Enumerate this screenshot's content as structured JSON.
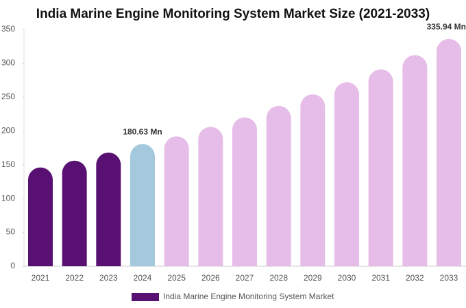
{
  "chart_data": {
    "type": "bar",
    "title": "India Marine Engine Monitoring System Market Size (2021-2033)",
    "categories": [
      "2021",
      "2022",
      "2023",
      "2024",
      "2025",
      "2026",
      "2027",
      "2028",
      "2029",
      "2030",
      "2031",
      "2032",
      "2033"
    ],
    "series": [
      {
        "name": "India Marine Engine Monitoring System Market",
        "color": "#581173",
        "values": [
          146,
          156,
          168,
          180.63,
          192,
          206,
          220,
          237,
          254,
          272,
          291,
          312,
          335.94
        ],
        "value_labels": [
          null,
          null,
          null,
          "180.63 Mn",
          null,
          null,
          null,
          null,
          null,
          null,
          null,
          null,
          "335.94 Mn"
        ],
        "colors": [
          "#581173",
          "#581173",
          "#581173",
          "#a4c9dd",
          "#e6bde8",
          "#e6bde8",
          "#e6bde8",
          "#e6bde8",
          "#e6bde8",
          "#e6bde8",
          "#e6bde8",
          "#e6bde8",
          "#e6bde8"
        ]
      }
    ],
    "ylim": [
      0,
      350
    ],
    "yticks": [
      0,
      50,
      100,
      150,
      200,
      250,
      300,
      350
    ],
    "grid": false
  }
}
